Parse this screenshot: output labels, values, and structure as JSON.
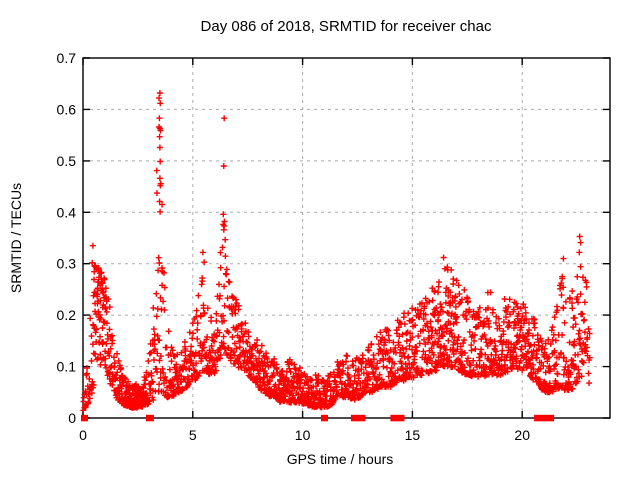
{
  "chart_data": {
    "type": "scatter",
    "title": "Day 086 of 2018, SRMTID for receiver chac",
    "xlabel": "GPS time / hours",
    "ylabel": "SRMTID / TECUs",
    "xlim": [
      0,
      24
    ],
    "ylim": [
      0,
      0.7
    ],
    "xticks": [
      0,
      5,
      10,
      15,
      20
    ],
    "yticks": [
      0,
      0.1,
      0.2,
      0.3,
      0.4,
      0.5,
      0.6,
      0.7
    ],
    "grid": true,
    "legend": "none",
    "marker": "plus",
    "marker_color": "#ff0000",
    "grid_color": "#ababab",
    "axis_color": "#000000",
    "band_envelope_columns": [
      "hour",
      "y_low",
      "y_high",
      "density",
      "top_biased"
    ],
    "band_envelope": [
      [
        0.0,
        0.01,
        0.08,
        1.5,
        0
      ],
      [
        0.15,
        0.02,
        0.12,
        2.0,
        0
      ],
      [
        0.35,
        0.04,
        0.22,
        2.5,
        0
      ],
      [
        0.55,
        0.06,
        0.3,
        4.0,
        1
      ],
      [
        0.75,
        0.1,
        0.29,
        4.5,
        1
      ],
      [
        1.0,
        0.1,
        0.27,
        4.0,
        1
      ],
      [
        1.2,
        0.07,
        0.22,
        3.0,
        0
      ],
      [
        1.5,
        0.04,
        0.14,
        3.0,
        0
      ],
      [
        1.8,
        0.025,
        0.09,
        4.0,
        0
      ],
      [
        2.2,
        0.02,
        0.07,
        4.5,
        0
      ],
      [
        2.6,
        0.02,
        0.065,
        4.5,
        0
      ],
      [
        2.9,
        0.025,
        0.09,
        4.0,
        0
      ],
      [
        3.1,
        0.03,
        0.16,
        3.0,
        0
      ],
      [
        3.3,
        0.04,
        0.34,
        2.8,
        0
      ],
      [
        3.42,
        0.05,
        0.59,
        3.0,
        0
      ],
      [
        3.52,
        0.05,
        0.63,
        3.0,
        0
      ],
      [
        3.62,
        0.05,
        0.4,
        2.6,
        0
      ],
      [
        3.75,
        0.04,
        0.22,
        2.6,
        0
      ],
      [
        4.0,
        0.04,
        0.14,
        3.0,
        0
      ],
      [
        4.4,
        0.05,
        0.13,
        3.0,
        0
      ],
      [
        4.8,
        0.06,
        0.16,
        3.0,
        0
      ],
      [
        5.1,
        0.07,
        0.2,
        3.0,
        0
      ],
      [
        5.4,
        0.09,
        0.29,
        3.0,
        0
      ],
      [
        5.6,
        0.09,
        0.25,
        3.0,
        0
      ],
      [
        5.9,
        0.08,
        0.2,
        3.0,
        0
      ],
      [
        6.15,
        0.1,
        0.27,
        3.0,
        0
      ],
      [
        6.32,
        0.13,
        0.48,
        2.6,
        0
      ],
      [
        6.42,
        0.14,
        0.58,
        2.6,
        0
      ],
      [
        6.55,
        0.12,
        0.37,
        2.6,
        0
      ],
      [
        6.75,
        0.11,
        0.27,
        3.0,
        0
      ],
      [
        7.0,
        0.1,
        0.23,
        3.0,
        0
      ],
      [
        7.4,
        0.09,
        0.19,
        3.0,
        0
      ],
      [
        7.8,
        0.07,
        0.17,
        3.0,
        0
      ],
      [
        8.2,
        0.05,
        0.14,
        3.2,
        0
      ],
      [
        8.6,
        0.04,
        0.12,
        3.2,
        0
      ],
      [
        9.0,
        0.03,
        0.105,
        3.5,
        0
      ],
      [
        9.4,
        0.03,
        0.115,
        3.5,
        0
      ],
      [
        9.8,
        0.03,
        0.1,
        3.5,
        0
      ],
      [
        10.2,
        0.025,
        0.09,
        3.5,
        0
      ],
      [
        10.6,
        0.02,
        0.085,
        3.5,
        0
      ],
      [
        11.0,
        0.02,
        0.075,
        3.5,
        0
      ],
      [
        11.3,
        0.025,
        0.09,
        3.0,
        0
      ],
      [
        11.6,
        0.04,
        0.11,
        3.0,
        0
      ],
      [
        12.0,
        0.04,
        0.125,
        3.0,
        0
      ],
      [
        12.4,
        0.035,
        0.115,
        3.0,
        0
      ],
      [
        12.8,
        0.045,
        0.13,
        3.0,
        0
      ],
      [
        13.2,
        0.05,
        0.15,
        3.0,
        0
      ],
      [
        13.6,
        0.06,
        0.17,
        3.0,
        0
      ],
      [
        14.0,
        0.06,
        0.19,
        3.0,
        0
      ],
      [
        14.4,
        0.07,
        0.2,
        3.0,
        0
      ],
      [
        14.8,
        0.075,
        0.21,
        3.0,
        0
      ],
      [
        15.2,
        0.08,
        0.22,
        3.0,
        0
      ],
      [
        15.6,
        0.085,
        0.235,
        3.2,
        0
      ],
      [
        16.0,
        0.09,
        0.26,
        3.5,
        0
      ],
      [
        16.4,
        0.1,
        0.305,
        4.0,
        0
      ],
      [
        16.7,
        0.1,
        0.29,
        4.0,
        0
      ],
      [
        17.0,
        0.095,
        0.27,
        3.5,
        0
      ],
      [
        17.4,
        0.085,
        0.26,
        3.0,
        0
      ],
      [
        17.8,
        0.08,
        0.24,
        3.0,
        0
      ],
      [
        18.2,
        0.08,
        0.235,
        3.0,
        0
      ],
      [
        18.6,
        0.085,
        0.26,
        3.0,
        0
      ],
      [
        19.0,
        0.08,
        0.24,
        3.0,
        0
      ],
      [
        19.4,
        0.09,
        0.24,
        3.2,
        0
      ],
      [
        19.8,
        0.095,
        0.23,
        3.5,
        0
      ],
      [
        20.2,
        0.09,
        0.22,
        3.5,
        0
      ],
      [
        20.6,
        0.07,
        0.19,
        3.0,
        0
      ],
      [
        21.0,
        0.05,
        0.16,
        3.0,
        0
      ],
      [
        21.4,
        0.05,
        0.185,
        3.0,
        0
      ],
      [
        21.75,
        0.06,
        0.29,
        2.8,
        0
      ],
      [
        22.1,
        0.05,
        0.24,
        2.8,
        0
      ],
      [
        22.4,
        0.06,
        0.27,
        2.8,
        0
      ],
      [
        22.65,
        0.08,
        0.35,
        2.8,
        0
      ],
      [
        22.9,
        0.08,
        0.28,
        2.6,
        0
      ],
      [
        23.1,
        0.06,
        0.18,
        2.0,
        0
      ]
    ],
    "outlier_points": [
      [
        0.45,
        0.335
      ],
      [
        0.42,
        0.302
      ],
      [
        3.5,
        0.632
      ],
      [
        3.46,
        0.622
      ],
      [
        3.52,
        0.612
      ],
      [
        3.48,
        0.583
      ],
      [
        3.46,
        0.566
      ],
      [
        3.5,
        0.563
      ],
      [
        3.53,
        0.559
      ],
      [
        3.49,
        0.547
      ],
      [
        3.5,
        0.526
      ],
      [
        3.36,
        0.481
      ],
      [
        3.5,
        0.466
      ],
      [
        3.52,
        0.452
      ],
      [
        3.49,
        0.421
      ],
      [
        3.6,
        0.415
      ],
      [
        3.51,
        0.401
      ],
      [
        6.43,
        0.583
      ],
      [
        6.41,
        0.49
      ],
      [
        6.39,
        0.396
      ],
      [
        6.44,
        0.382
      ],
      [
        6.41,
        0.366
      ],
      [
        5.46,
        0.322
      ],
      [
        5.52,
        0.303
      ],
      [
        16.42,
        0.312
      ],
      [
        16.77,
        0.288
      ],
      [
        21.88,
        0.31
      ],
      [
        22.62,
        0.353
      ],
      [
        22.66,
        0.341
      ],
      [
        22.6,
        0.322
      ]
    ],
    "zero_value_markers": [
      {
        "hour": 0.07,
        "width_hours": 0.32
      },
      {
        "hour": 3.05,
        "width_hours": 0.36
      },
      {
        "hour": 11.0,
        "width_hours": 0.32
      },
      {
        "hour": 12.38,
        "width_hours": 0.36
      },
      {
        "hour": 12.68,
        "width_hours": 0.36
      },
      {
        "hour": 14.32,
        "width_hours": 0.64
      },
      {
        "hour": 21.0,
        "width_hours": 0.91
      }
    ]
  }
}
